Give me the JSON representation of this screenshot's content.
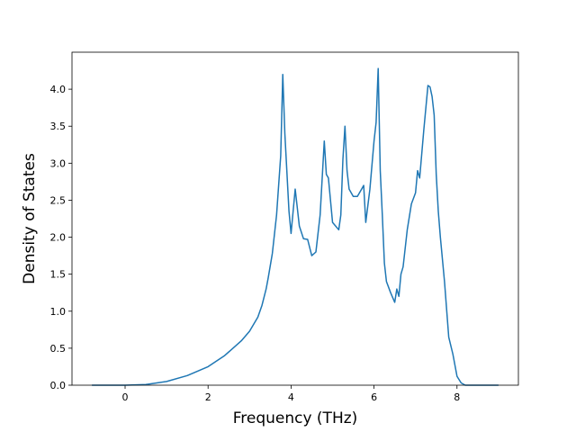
{
  "chart_data": {
    "type": "line",
    "xlabel": "Frequency (THz)",
    "ylabel": "Density of States",
    "xlim": [
      -1.28,
      9.48
    ],
    "ylim": [
      0.0,
      4.5
    ],
    "xticks": [
      0,
      2,
      4,
      6,
      8
    ],
    "xtick_labels": [
      "0",
      "2",
      "4",
      "6",
      "8"
    ],
    "yticks": [
      0.0,
      0.5,
      1.0,
      1.5,
      2.0,
      2.5,
      3.0,
      3.5,
      4.0
    ],
    "ytick_labels": [
      "0.0",
      "0.5",
      "1.0",
      "1.5",
      "2.0",
      "2.5",
      "3.0",
      "3.5",
      "4.0"
    ],
    "grid": false,
    "line_color": "#1f77b4",
    "series": [
      {
        "x": [
          -0.8,
          0.0,
          0.5,
          1.0,
          1.5,
          2.0,
          2.4,
          2.8,
          3.0,
          3.2,
          3.3,
          3.4,
          3.45,
          3.55,
          3.65,
          3.75,
          3.8,
          3.85,
          3.95,
          4.0,
          4.1,
          4.2,
          4.3,
          4.4,
          4.5,
          4.6,
          4.7,
          4.8,
          4.85,
          4.9,
          5.0,
          5.15,
          5.2,
          5.25,
          5.3,
          5.35,
          5.4,
          5.5,
          5.6,
          5.7,
          5.75,
          5.8,
          5.9,
          6.0,
          6.05,
          6.1,
          6.15,
          6.2,
          6.25,
          6.3,
          6.4,
          6.5,
          6.55,
          6.6,
          6.65,
          6.7,
          6.8,
          6.9,
          7.0,
          7.05,
          7.1,
          7.2,
          7.3,
          7.35,
          7.4,
          7.45,
          7.5,
          7.55,
          7.6,
          7.7,
          7.8,
          7.9,
          8.0,
          8.1,
          8.2,
          8.3,
          8.6,
          9.0
        ],
        "y": [
          0.0,
          0.0,
          0.01,
          0.05,
          0.13,
          0.25,
          0.4,
          0.6,
          0.73,
          0.92,
          1.08,
          1.3,
          1.45,
          1.78,
          2.3,
          3.1,
          4.2,
          3.4,
          2.35,
          2.05,
          2.65,
          2.15,
          1.98,
          1.97,
          1.75,
          1.8,
          2.3,
          3.3,
          2.85,
          2.8,
          2.2,
          2.1,
          2.3,
          3.05,
          3.5,
          2.9,
          2.65,
          2.55,
          2.55,
          2.65,
          2.7,
          2.2,
          2.65,
          3.3,
          3.55,
          4.28,
          2.9,
          2.3,
          1.65,
          1.4,
          1.25,
          1.12,
          1.3,
          1.2,
          1.5,
          1.6,
          2.1,
          2.45,
          2.6,
          2.9,
          2.8,
          3.45,
          4.05,
          4.03,
          3.9,
          3.65,
          2.85,
          2.35,
          2.0,
          1.4,
          0.65,
          0.42,
          0.12,
          0.03,
          0.0,
          0.0,
          0.0,
          0.0
        ]
      }
    ]
  }
}
